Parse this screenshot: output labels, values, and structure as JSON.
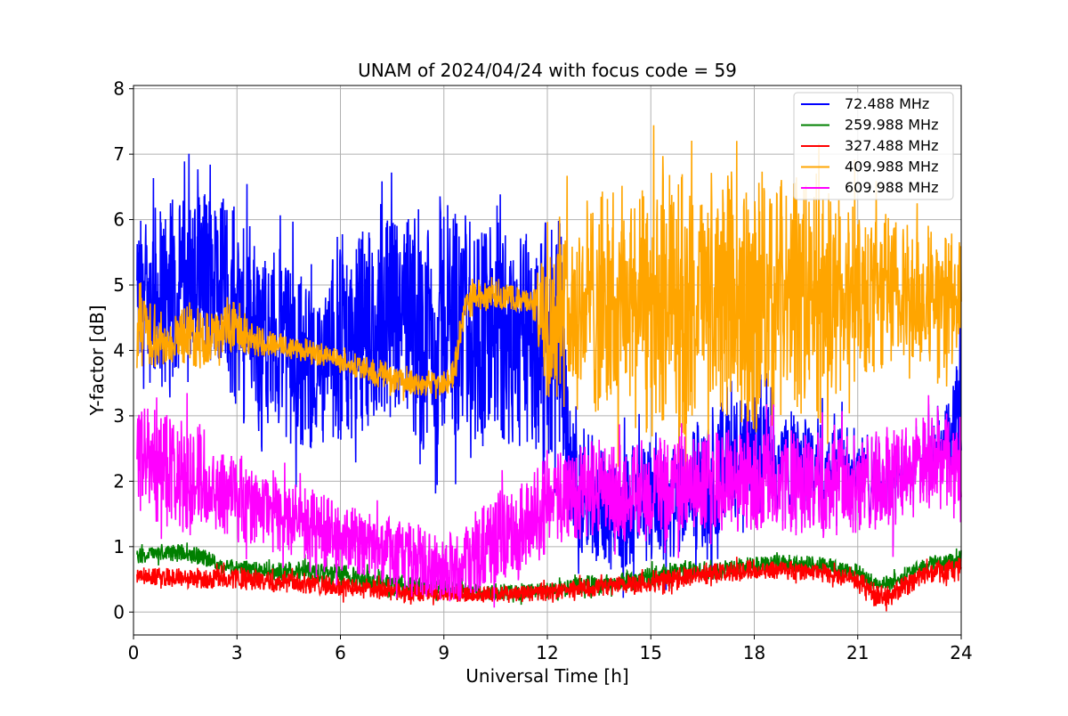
{
  "chart_data": {
    "type": "line",
    "title": "UNAM of 2024/04/24 with focus code = 59",
    "xlabel": "Universal Time [h]",
    "ylabel": "Y-factor [dB]",
    "xlim": [
      0,
      24
    ],
    "ylim": [
      -0.35,
      8.05
    ],
    "xticks": [
      0,
      3,
      6,
      9,
      12,
      15,
      18,
      21,
      24
    ],
    "yticks": [
      0,
      1,
      2,
      3,
      4,
      5,
      6,
      7,
      8
    ],
    "grid": true,
    "legend_position": "top-right",
    "series": [
      {
        "name": "72.488 MHz",
        "legend_label": " 72.488 MHz",
        "color": "#0000ff",
        "band": [
          [
            0.1,
            3.3,
            6.0
          ],
          [
            0.5,
            3.5,
            6.2
          ],
          [
            1.0,
            3.3,
            6.3
          ],
          [
            1.5,
            3.8,
            6.4
          ],
          [
            2.0,
            3.6,
            6.6
          ],
          [
            2.5,
            3.9,
            6.4
          ],
          [
            3.0,
            2.8,
            6.3
          ],
          [
            3.5,
            3.0,
            6.0
          ],
          [
            4.0,
            2.8,
            5.6
          ],
          [
            4.5,
            2.6,
            5.5
          ],
          [
            5.0,
            2.5,
            5.2
          ],
          [
            5.3,
            2.5,
            4.9
          ],
          [
            5.6,
            2.6,
            5.2
          ],
          [
            5.8,
            2.6,
            5.8
          ],
          [
            6.2,
            2.5,
            5.6
          ],
          [
            6.7,
            2.8,
            5.9
          ],
          [
            7.2,
            2.8,
            6.0
          ],
          [
            7.7,
            2.7,
            6.0
          ],
          [
            8.2,
            2.5,
            6.3
          ],
          [
            8.7,
            2.4,
            6.2
          ],
          [
            9.0,
            2.5,
            6.5
          ],
          [
            9.5,
            2.6,
            6.2
          ],
          [
            10.0,
            2.5,
            6.1
          ],
          [
            10.5,
            2.6,
            6.0
          ],
          [
            11.0,
            2.3,
            5.8
          ],
          [
            11.5,
            2.5,
            5.9
          ],
          [
            12.0,
            2.3,
            6.0
          ],
          [
            12.4,
            2.5,
            6.1
          ],
          [
            12.6,
            1.2,
            3.3
          ],
          [
            13.0,
            0.8,
            2.5
          ],
          [
            14.0,
            0.6,
            2.5
          ],
          [
            15.0,
            0.7,
            2.6
          ],
          [
            16.0,
            0.8,
            2.7
          ],
          [
            17.0,
            1.0,
            3.3
          ],
          [
            18.0,
            1.5,
            3.3
          ],
          [
            19.0,
            1.3,
            3.1
          ],
          [
            20.0,
            1.2,
            3.0
          ],
          [
            21.0,
            1.4,
            2.8
          ],
          [
            22.0,
            1.3,
            2.7
          ],
          [
            23.0,
            1.7,
            2.9
          ],
          [
            23.6,
            1.9,
            3.2
          ],
          [
            24.0,
            2.2,
            4.8
          ]
        ]
      },
      {
        "name": "259.988 MHz",
        "legend_label": "259.988 MHz",
        "color": "#008000",
        "band": [
          [
            0.1,
            0.72,
            1.0
          ],
          [
            1.0,
            0.78,
            1.05
          ],
          [
            2.0,
            0.72,
            1.0
          ],
          [
            2.5,
            0.6,
            0.8
          ],
          [
            3.0,
            0.55,
            0.8
          ],
          [
            4.0,
            0.45,
            0.75
          ],
          [
            5.0,
            0.45,
            0.8
          ],
          [
            6.0,
            0.35,
            0.75
          ],
          [
            7.0,
            0.3,
            0.65
          ],
          [
            8.0,
            0.25,
            0.55
          ],
          [
            9.0,
            0.2,
            0.5
          ],
          [
            10.0,
            0.2,
            0.45
          ],
          [
            11.0,
            0.15,
            0.45
          ],
          [
            12.0,
            0.2,
            0.45
          ],
          [
            13.0,
            0.25,
            0.55
          ],
          [
            14.0,
            0.3,
            0.6
          ],
          [
            15.0,
            0.35,
            0.7
          ],
          [
            16.0,
            0.45,
            0.8
          ],
          [
            17.0,
            0.5,
            0.8
          ],
          [
            18.0,
            0.6,
            0.85
          ],
          [
            19.0,
            0.62,
            0.88
          ],
          [
            20.0,
            0.6,
            0.85
          ],
          [
            21.0,
            0.45,
            0.75
          ],
          [
            21.6,
            0.3,
            0.5
          ],
          [
            22.0,
            0.35,
            0.6
          ],
          [
            23.0,
            0.6,
            0.85
          ],
          [
            24.0,
            0.65,
            0.95
          ]
        ]
      },
      {
        "name": "327.488 MHz",
        "legend_label": "327.488 MHz",
        "color": "#ff0000",
        "band": [
          [
            0.1,
            0.42,
            0.7
          ],
          [
            1.0,
            0.38,
            0.68
          ],
          [
            2.0,
            0.35,
            0.65
          ],
          [
            3.0,
            0.35,
            0.7
          ],
          [
            4.0,
            0.3,
            0.62
          ],
          [
            5.0,
            0.28,
            0.6
          ],
          [
            6.0,
            0.22,
            0.55
          ],
          [
            7.0,
            0.18,
            0.5
          ],
          [
            8.0,
            0.16,
            0.45
          ],
          [
            9.0,
            0.15,
            0.4
          ],
          [
            10.0,
            0.14,
            0.38
          ],
          [
            11.0,
            0.14,
            0.4
          ],
          [
            12.0,
            0.18,
            0.45
          ],
          [
            13.0,
            0.2,
            0.5
          ],
          [
            14.0,
            0.25,
            0.55
          ],
          [
            15.0,
            0.3,
            0.62
          ],
          [
            16.0,
            0.38,
            0.7
          ],
          [
            17.0,
            0.45,
            0.75
          ],
          [
            18.0,
            0.5,
            0.82
          ],
          [
            19.0,
            0.5,
            0.8
          ],
          [
            20.0,
            0.45,
            0.75
          ],
          [
            21.0,
            0.35,
            0.62
          ],
          [
            21.6,
            0.05,
            0.4
          ],
          [
            22.0,
            0.1,
            0.45
          ],
          [
            23.0,
            0.45,
            0.75
          ],
          [
            24.0,
            0.45,
            0.85
          ]
        ]
      },
      {
        "name": "409.988 MHz",
        "legend_label": "409.988 MHz",
        "color": "#ffa500",
        "band": [
          [
            0.1,
            3.8,
            5.2
          ],
          [
            0.5,
            3.7,
            4.9
          ],
          [
            1.0,
            3.8,
            4.4
          ],
          [
            1.5,
            3.8,
            4.8
          ],
          [
            2.0,
            3.7,
            4.6
          ],
          [
            2.5,
            3.9,
            4.6
          ],
          [
            3.0,
            4.0,
            4.8
          ],
          [
            3.5,
            3.9,
            4.4
          ],
          [
            4.0,
            3.9,
            4.3
          ],
          [
            5.0,
            3.8,
            4.2
          ],
          [
            6.0,
            3.7,
            4.0
          ],
          [
            7.0,
            3.4,
            3.9
          ],
          [
            8.0,
            3.3,
            3.7
          ],
          [
            9.0,
            3.3,
            3.7
          ],
          [
            9.3,
            3.4,
            3.9
          ],
          [
            9.6,
            4.4,
            5.0
          ],
          [
            10.0,
            4.6,
            5.1
          ],
          [
            10.5,
            4.6,
            5.0
          ],
          [
            11.0,
            4.6,
            5.0
          ],
          [
            11.5,
            4.6,
            4.9
          ],
          [
            12.0,
            3.2,
            5.6
          ],
          [
            13.0,
            3.0,
            6.4
          ],
          [
            14.0,
            3.0,
            6.5
          ],
          [
            15.0,
            2.6,
            6.6
          ],
          [
            16.0,
            2.7,
            6.8
          ],
          [
            17.0,
            3.0,
            6.7
          ],
          [
            18.0,
            2.7,
            6.6
          ],
          [
            19.0,
            2.9,
            6.7
          ],
          [
            20.0,
            3.0,
            6.5
          ],
          [
            21.0,
            3.4,
            6.2
          ],
          [
            22.0,
            3.5,
            6.1
          ],
          [
            23.0,
            3.8,
            5.8
          ],
          [
            24.0,
            4.0,
            5.8
          ]
        ]
      },
      {
        "name": "609.988 MHz",
        "legend_label": "609.988 MHz",
        "color": "#ff00ff",
        "band": [
          [
            0.1,
            1.5,
            3.3
          ],
          [
            0.5,
            1.4,
            3.2
          ],
          [
            1.0,
            1.3,
            3.0
          ],
          [
            1.5,
            1.2,
            3.0
          ],
          [
            2.0,
            1.3,
            2.9
          ],
          [
            2.5,
            1.2,
            2.6
          ],
          [
            3.0,
            1.1,
            2.5
          ],
          [
            3.5,
            1.0,
            2.3
          ],
          [
            4.0,
            0.9,
            2.2
          ],
          [
            5.0,
            0.8,
            1.9
          ],
          [
            6.0,
            0.6,
            1.7
          ],
          [
            7.0,
            0.5,
            1.5
          ],
          [
            8.0,
            0.3,
            1.4
          ],
          [
            9.0,
            0.15,
            1.2
          ],
          [
            9.5,
            0.1,
            1.4
          ],
          [
            10.0,
            0.3,
            1.7
          ],
          [
            11.0,
            0.4,
            2.0
          ],
          [
            12.0,
            0.9,
            2.5
          ],
          [
            13.0,
            1.1,
            2.7
          ],
          [
            14.0,
            1.1,
            2.6
          ],
          [
            15.0,
            1.0,
            2.7
          ],
          [
            16.0,
            1.2,
            2.7
          ],
          [
            17.0,
            1.2,
            2.8
          ],
          [
            18.0,
            1.2,
            2.8
          ],
          [
            19.0,
            1.2,
            2.8
          ],
          [
            20.0,
            1.1,
            2.8
          ],
          [
            21.0,
            1.2,
            2.7
          ],
          [
            22.0,
            1.2,
            2.9
          ],
          [
            23.0,
            1.5,
            3.0
          ],
          [
            24.0,
            1.6,
            3.1
          ]
        ]
      }
    ]
  }
}
